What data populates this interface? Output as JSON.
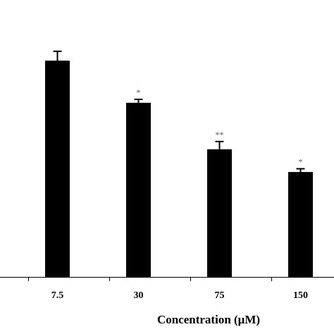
{
  "chart_data": {
    "type": "bar",
    "title": "",
    "xlabel": "Concentration (μM)",
    "ylabel": "",
    "categories": [
      "7.5",
      "30",
      "75",
      "150"
    ],
    "values": [
      100,
      80.5,
      59,
      48.5
    ],
    "errors": [
      4.3,
      1.6,
      3.6,
      1.5
    ],
    "significance": [
      "",
      "*",
      "**",
      "*"
    ],
    "ylim": [
      0,
      105
    ],
    "grid": false,
    "legend": "none",
    "colors": {
      "bar": "#000000",
      "significance": "#555555",
      "axis": "#000000"
    }
  }
}
